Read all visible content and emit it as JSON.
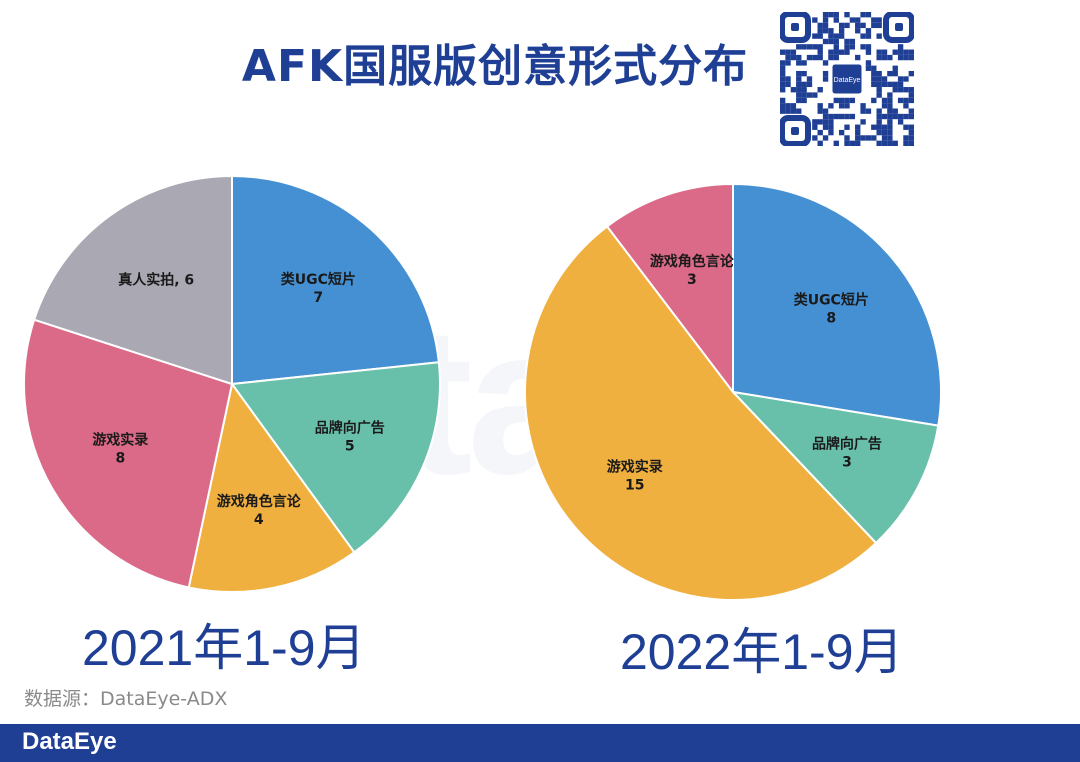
{
  "header": {
    "title": "AFK国服版创意形式分布"
  },
  "qr_center_text": "DataEye",
  "watermark_text": "DataEye",
  "chart_data": [
    {
      "type": "pie",
      "title": "2021年1-9月",
      "slices": [
        {
          "label": "类UGC短片",
          "value": 7,
          "color": "#4590d2",
          "label_style": "stacked"
        },
        {
          "label": "品牌向广告",
          "value": 5,
          "color": "#69c0aa",
          "label_style": "stacked"
        },
        {
          "label": "游戏角色言论",
          "value": 4,
          "color": "#f0b040",
          "label_style": "stacked"
        },
        {
          "label": "游戏实录",
          "value": 8,
          "color": "#da6a88",
          "label_style": "stacked"
        },
        {
          "label": "真人实拍",
          "value": 6,
          "color": "#a9a8b3",
          "label_style": "inline"
        }
      ]
    },
    {
      "type": "pie",
      "title": "2022年1-9月",
      "slices": [
        {
          "label": "类UGC短片",
          "value": 8,
          "color": "#4590d2",
          "label_style": "stacked"
        },
        {
          "label": "品牌向广告",
          "value": 3,
          "color": "#69c0aa",
          "label_style": "stacked"
        },
        {
          "label": "游戏实录",
          "value": 15,
          "color": "#f0b040",
          "label_style": "stacked"
        },
        {
          "label": "游戏角色言论",
          "value": 3,
          "color": "#da6a88",
          "label_style": "stacked"
        }
      ]
    }
  ],
  "periods": [
    "2021年1-9月",
    "2022年1-9月"
  ],
  "source": "数据源：DataEye-ADX",
  "footer": {
    "brand": "DataEye"
  }
}
